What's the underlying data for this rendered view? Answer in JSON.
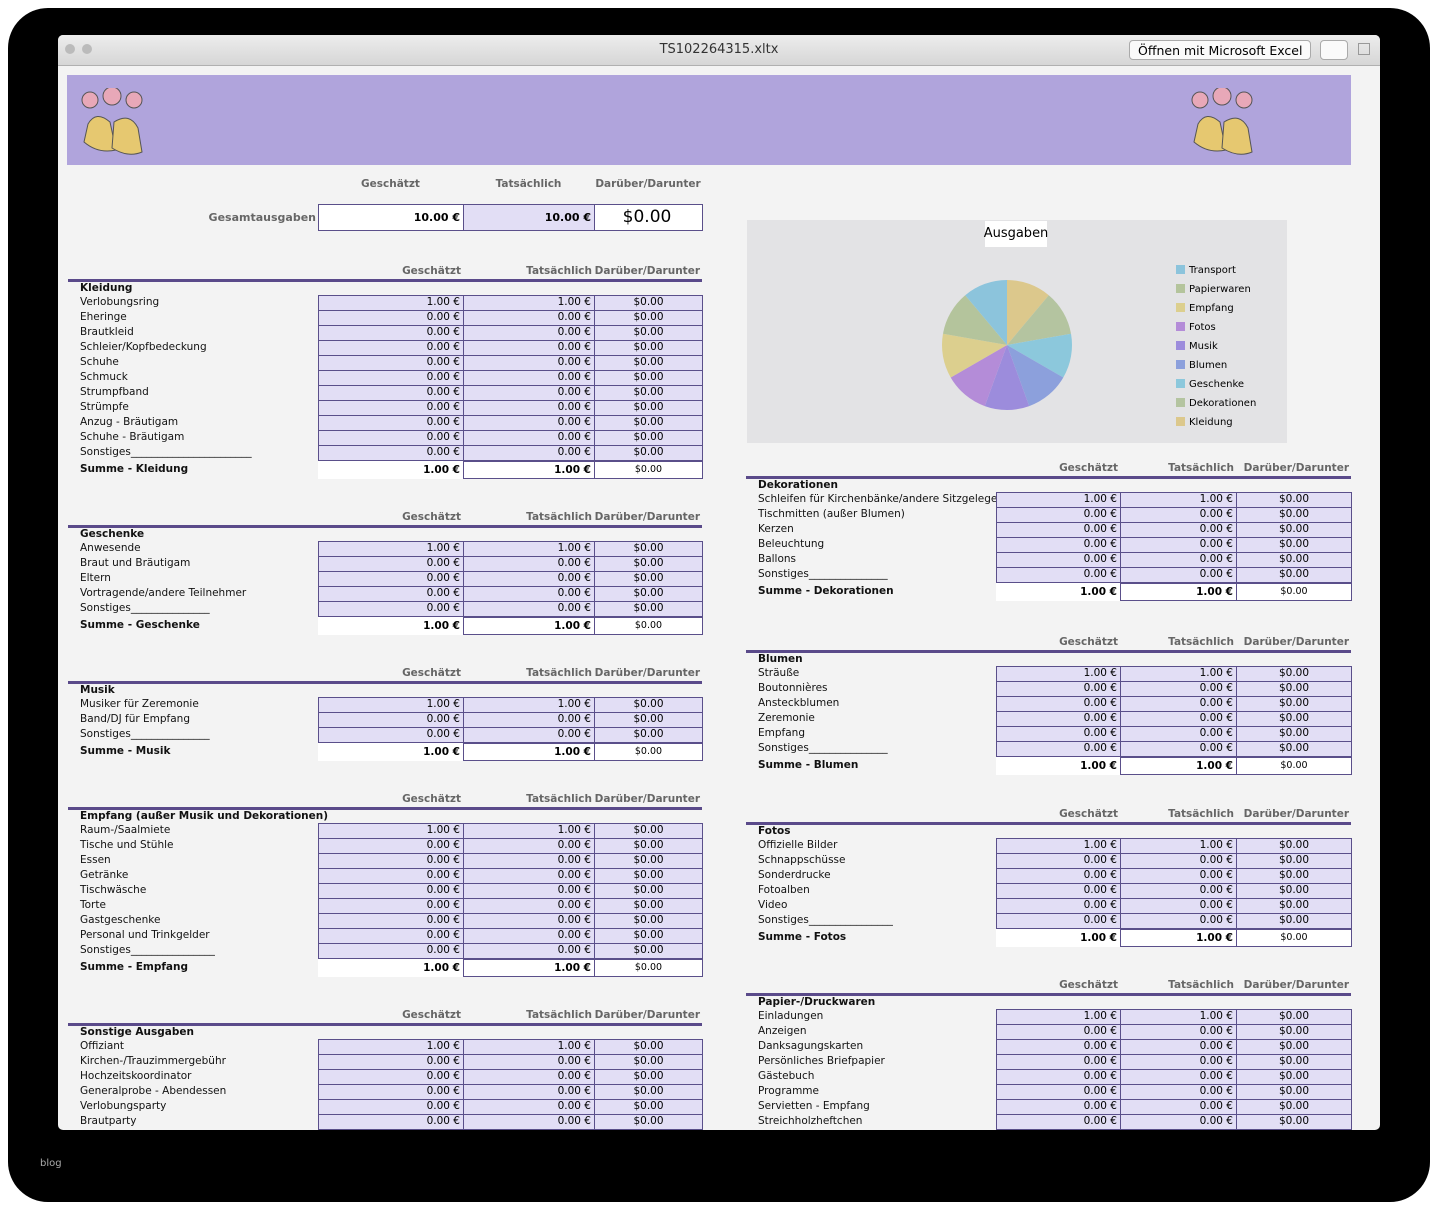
{
  "window": {
    "title": "TS102264315.xltx",
    "open_button": "Öffnen mit Microsoft Excel"
  },
  "summary": {
    "columns": [
      "Geschätzt",
      "Tatsächlich",
      "Darüber/Darunter"
    ],
    "label": "Gesamtausgaben",
    "values": [
      "10.00 €",
      "10.00 €",
      "$0.00"
    ]
  },
  "chart_data": {
    "type": "pie",
    "title": "Ausgaben",
    "categories": [
      "Transport",
      "Papierwaren",
      "Empfang",
      "Fotos",
      "Musik",
      "Blumen",
      "Geschenke",
      "Dekorationen",
      "Kleidung"
    ],
    "values": [
      1,
      1,
      1,
      1,
      1,
      1,
      1,
      1,
      1
    ],
    "colors": [
      "#8cc4dc",
      "#b4c49c",
      "#dccf8e",
      "#b48cd8",
      "#9c8cdc",
      "#8ca0dc",
      "#8cc8dc",
      "#b4c4a0",
      "#dcc88c"
    ]
  },
  "left": [
    {
      "title": "Kleidung",
      "columns": [
        "Geschätzt",
        "Tatsächlich",
        "Darüber/Darunter"
      ],
      "rows": [
        [
          "Verlobungsring",
          "1.00 €",
          "1.00 €",
          "$0.00"
        ],
        [
          "Eheringe",
          "0.00 €",
          "0.00 €",
          "$0.00"
        ],
        [
          "Brautkleid",
          "0.00 €",
          "0.00 €",
          "$0.00"
        ],
        [
          "Schleier/Kopfbedeckung",
          "0.00 €",
          "0.00 €",
          "$0.00"
        ],
        [
          "Schuhe",
          "0.00 €",
          "0.00 €",
          "$0.00"
        ],
        [
          "Schmuck",
          "0.00 €",
          "0.00 €",
          "$0.00"
        ],
        [
          "Strumpfband",
          "0.00 €",
          "0.00 €",
          "$0.00"
        ],
        [
          "Strümpfe",
          "0.00 €",
          "0.00 €",
          "$0.00"
        ],
        [
          "Anzug - Bräutigam",
          "0.00 €",
          "0.00 €",
          "$0.00"
        ],
        [
          "Schuhe - Bräutigam",
          "0.00 €",
          "0.00 €",
          "$0.00"
        ],
        [
          "Sonstiges_______________________",
          "0.00 €",
          "0.00 €",
          "$0.00"
        ]
      ],
      "total": [
        "Summe - Kleidung",
        "1.00 €",
        "1.00 €",
        "$0.00"
      ]
    },
    {
      "title": "Geschenke",
      "columns": [
        "Geschätzt",
        "Tatsächlich",
        "Darüber/Darunter"
      ],
      "rows": [
        [
          "Anwesende",
          "1.00 €",
          "1.00 €",
          "$0.00"
        ],
        [
          "Braut und Bräutigam",
          "0.00 €",
          "0.00 €",
          "$0.00"
        ],
        [
          "Eltern",
          "0.00 €",
          "0.00 €",
          "$0.00"
        ],
        [
          "Vortragende/andere Teilnehmer",
          "0.00 €",
          "0.00 €",
          "$0.00"
        ],
        [
          "Sonstiges_______________",
          "0.00 €",
          "0.00 €",
          "$0.00"
        ]
      ],
      "total": [
        "Summe - Geschenke",
        "1.00 €",
        "1.00 €",
        "$0.00"
      ]
    },
    {
      "title": "Musik",
      "columns": [
        "Geschätzt",
        "Tatsächlich",
        "Darüber/Darunter"
      ],
      "rows": [
        [
          "Musiker für Zeremonie",
          "1.00 €",
          "1.00 €",
          "$0.00"
        ],
        [
          "Band/DJ für Empfang",
          "0.00 €",
          "0.00 €",
          "$0.00"
        ],
        [
          "Sonstiges_______________",
          "0.00 €",
          "0.00 €",
          "$0.00"
        ]
      ],
      "total": [
        "Summe - Musik",
        "1.00 €",
        "1.00 €",
        "$0.00"
      ]
    },
    {
      "title": "Empfang (außer Musik und Dekorationen)",
      "columns": [
        "Geschätzt",
        "Tatsächlich",
        "Darüber/Darunter"
      ],
      "rows": [
        [
          "Raum-/Saalmiete",
          "1.00 €",
          "1.00 €",
          "$0.00"
        ],
        [
          "Tische und Stühle",
          "0.00 €",
          "0.00 €",
          "$0.00"
        ],
        [
          "Essen",
          "0.00 €",
          "0.00 €",
          "$0.00"
        ],
        [
          "Getränke",
          "0.00 €",
          "0.00 €",
          "$0.00"
        ],
        [
          "Tischwäsche",
          "0.00 €",
          "0.00 €",
          "$0.00"
        ],
        [
          "Torte",
          "0.00 €",
          "0.00 €",
          "$0.00"
        ],
        [
          "Gastgeschenke",
          "0.00 €",
          "0.00 €",
          "$0.00"
        ],
        [
          "Personal und Trinkgelder",
          "0.00 €",
          "0.00 €",
          "$0.00"
        ],
        [
          "Sonstiges________________",
          "0.00 €",
          "0.00 €",
          "$0.00"
        ]
      ],
      "total": [
        "Summe - Empfang",
        "1.00 €",
        "1.00 €",
        "$0.00"
      ]
    },
    {
      "title": "Sonstige Ausgaben",
      "columns": [
        "Geschätzt",
        "Tatsächlich",
        "Darüber/Darunter"
      ],
      "rows": [
        [
          "Offiziant",
          "1.00 €",
          "1.00 €",
          "$0.00"
        ],
        [
          "Kirchen-/Trauzimmergebühr",
          "0.00 €",
          "0.00 €",
          "$0.00"
        ],
        [
          "Hochzeitskoordinator",
          "0.00 €",
          "0.00 €",
          "$0.00"
        ],
        [
          "Generalprobe - Abendessen",
          "0.00 €",
          "0.00 €",
          "$0.00"
        ],
        [
          "Verlobungsparty",
          "0.00 €",
          "0.00 €",
          "$0.00"
        ],
        [
          "Brautparty",
          "0.00 €",
          "0.00 €",
          "$0.00"
        ]
      ]
    }
  ],
  "right": [
    {
      "title": "Dekorationen",
      "columns": [
        "Geschätzt",
        "Tatsächlich",
        "Darüber/Darunter"
      ],
      "rows": [
        [
          "Schleifen für Kirchenbänke/andere Sitzgelegenheiten",
          "1.00 €",
          "1.00 €",
          "$0.00"
        ],
        [
          "Tischmitten (außer Blumen)",
          "0.00 €",
          "0.00 €",
          "$0.00"
        ],
        [
          "Kerzen",
          "0.00 €",
          "0.00 €",
          "$0.00"
        ],
        [
          "Beleuchtung",
          "0.00 €",
          "0.00 €",
          "$0.00"
        ],
        [
          "Ballons",
          "0.00 €",
          "0.00 €",
          "$0.00"
        ],
        [
          "Sonstiges_______________",
          "0.00 €",
          "0.00 €",
          "$0.00"
        ]
      ],
      "total": [
        "Summe - Dekorationen",
        "1.00 €",
        "1.00 €",
        "$0.00"
      ]
    },
    {
      "title": "Blumen",
      "columns": [
        "Geschätzt",
        "Tatsächlich",
        "Darüber/Darunter"
      ],
      "rows": [
        [
          "Sträuße",
          "1.00 €",
          "1.00 €",
          "$0.00"
        ],
        [
          "Boutonnières",
          "0.00 €",
          "0.00 €",
          "$0.00"
        ],
        [
          "Ansteckblumen",
          "0.00 €",
          "0.00 €",
          "$0.00"
        ],
        [
          "Zeremonie",
          "0.00 €",
          "0.00 €",
          "$0.00"
        ],
        [
          "Empfang",
          "0.00 €",
          "0.00 €",
          "$0.00"
        ],
        [
          "Sonstiges_______________",
          "0.00 €",
          "0.00 €",
          "$0.00"
        ]
      ],
      "total": [
        "Summe - Blumen",
        "1.00 €",
        "1.00 €",
        "$0.00"
      ]
    },
    {
      "title": "Fotos",
      "columns": [
        "Geschätzt",
        "Tatsächlich",
        "Darüber/Darunter"
      ],
      "rows": [
        [
          "Offizielle Bilder",
          "1.00 €",
          "1.00 €",
          "$0.00"
        ],
        [
          "Schnappschüsse",
          "0.00 €",
          "0.00 €",
          "$0.00"
        ],
        [
          "Sonderdrucke",
          "0.00 €",
          "0.00 €",
          "$0.00"
        ],
        [
          "Fotoalben",
          "0.00 €",
          "0.00 €",
          "$0.00"
        ],
        [
          "Video",
          "0.00 €",
          "0.00 €",
          "$0.00"
        ],
        [
          "Sonstiges________________",
          "0.00 €",
          "0.00 €",
          "$0.00"
        ]
      ],
      "total": [
        "Summe - Fotos",
        "1.00 €",
        "1.00 €",
        "$0.00"
      ]
    },
    {
      "title": "Papier-/Druckwaren",
      "columns": [
        "Geschätzt",
        "Tatsächlich",
        "Darüber/Darunter"
      ],
      "rows": [
        [
          "Einladungen",
          "1.00 €",
          "1.00 €",
          "$0.00"
        ],
        [
          "Anzeigen",
          "0.00 €",
          "0.00 €",
          "$0.00"
        ],
        [
          "Danksagungskarten",
          "0.00 €",
          "0.00 €",
          "$0.00"
        ],
        [
          "Persönliches Briefpapier",
          "0.00 €",
          "0.00 €",
          "$0.00"
        ],
        [
          "Gästebuch",
          "0.00 €",
          "0.00 €",
          "$0.00"
        ],
        [
          "Programme",
          "0.00 €",
          "0.00 €",
          "$0.00"
        ],
        [
          "Servietten - Empfang",
          "0.00 €",
          "0.00 €",
          "$0.00"
        ],
        [
          "Streichholzheftchen",
          "0.00 €",
          "0.00 €",
          "$0.00"
        ]
      ]
    }
  ],
  "footer": "blog"
}
